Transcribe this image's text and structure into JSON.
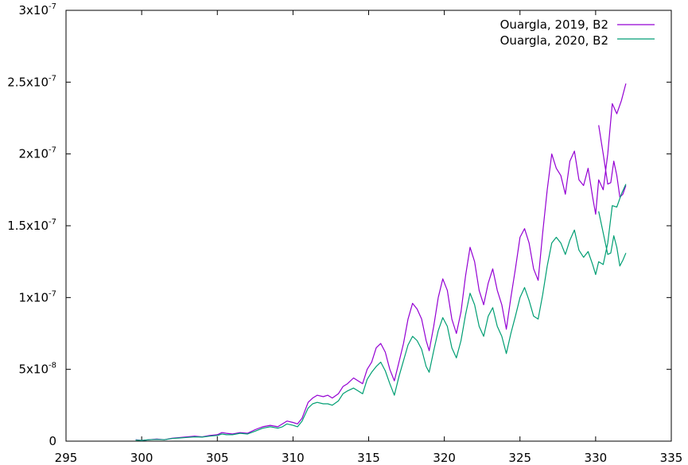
{
  "chart_data": {
    "type": "line",
    "title": "",
    "xlabel": "",
    "ylabel": "",
    "xlim": [
      295,
      335
    ],
    "ylim": [
      0,
      3e-07
    ],
    "x_ticks": [
      295,
      300,
      305,
      310,
      315,
      320,
      325,
      330,
      335
    ],
    "y_ticks": [
      {
        "value": 0,
        "mant": "0",
        "exp": ""
      },
      {
        "value": 5e-08,
        "mant": "5x10",
        "exp": "-8"
      },
      {
        "value": 1e-07,
        "mant": "1x10",
        "exp": "-7"
      },
      {
        "value": 1.5e-07,
        "mant": "1.5x10",
        "exp": "-7"
      },
      {
        "value": 2e-07,
        "mant": "2x10",
        "exp": "-7"
      },
      {
        "value": 2.5e-07,
        "mant": "2.5x10",
        "exp": "-7"
      },
      {
        "value": 3e-07,
        "mant": "3x10",
        "exp": "-7"
      }
    ],
    "grid": false,
    "legend_position": "top-right",
    "series": [
      {
        "name": "Ouargla, 2019, B2",
        "color": "#9400d3",
        "x": [
          299.6,
          300.0,
          300.5,
          301.0,
          301.5,
          302.0,
          302.5,
          303.0,
          303.5,
          304.0,
          304.5,
          305.0,
          305.3,
          305.6,
          306.0,
          306.5,
          307.0,
          307.5,
          308.0,
          308.5,
          309.0,
          309.3,
          309.6,
          310.0,
          310.3,
          310.6,
          311.0,
          311.3,
          311.6,
          312.0,
          312.3,
          312.6,
          313.0,
          313.3,
          313.6,
          314.0,
          314.3,
          314.6,
          314.9,
          315.2,
          315.5,
          315.8,
          316.1,
          316.4,
          316.7,
          317.0,
          317.3,
          317.6,
          317.9,
          318.2,
          318.5,
          318.8,
          319.0,
          319.3,
          319.6,
          319.9,
          320.2,
          320.5,
          320.8,
          321.1,
          321.4,
          321.7,
          322.0,
          322.3,
          322.6,
          322.9,
          323.2,
          323.5,
          323.8,
          324.1,
          324.4,
          324.7,
          325.0,
          325.3,
          325.6,
          325.9,
          326.2,
          326.5,
          326.8,
          327.1,
          327.4,
          327.7,
          328.0,
          328.3,
          328.6,
          328.9,
          329.2,
          329.5,
          329.8,
          330.0,
          330.2,
          330.5,
          330.8,
          331.1,
          331.4,
          331.7,
          332.0
        ],
        "y": [
          1e-09,
          5e-10,
          1e-09,
          1.5e-09,
          1e-09,
          2e-09,
          2.5e-09,
          3e-09,
          3.5e-09,
          3e-09,
          4e-09,
          4.5e-09,
          6e-09,
          5.5e-09,
          5e-09,
          6e-09,
          5.5e-09,
          8e-09,
          1e-08,
          1.1e-08,
          1e-08,
          1.2e-08,
          1.4e-08,
          1.3e-08,
          1.2e-08,
          1.6e-08,
          2.7e-08,
          3e-08,
          3.2e-08,
          3.1e-08,
          3.2e-08,
          3e-08,
          3.3e-08,
          3.8e-08,
          4e-08,
          4.4e-08,
          4.2e-08,
          4e-08,
          5e-08,
          5.5e-08,
          6.5e-08,
          6.8e-08,
          6.2e-08,
          5e-08,
          4.2e-08,
          5.5e-08,
          6.8e-08,
          8.5e-08,
          9.6e-08,
          9.2e-08,
          8.5e-08,
          7e-08,
          6.3e-08,
          8e-08,
          1e-07,
          1.13e-07,
          1.05e-07,
          8.5e-08,
          7.5e-08,
          9e-08,
          1.15e-07,
          1.35e-07,
          1.25e-07,
          1.05e-07,
          9.5e-08,
          1.1e-07,
          1.2e-07,
          1.05e-07,
          9.5e-08,
          7.8e-08,
          1e-07,
          1.2e-07,
          1.42e-07,
          1.48e-07,
          1.38e-07,
          1.2e-07,
          1.12e-07,
          1.45e-07,
          1.75e-07,
          2e-07,
          1.9e-07,
          1.85e-07,
          1.72e-07,
          1.95e-07,
          2.02e-07,
          1.82e-07,
          1.78e-07,
          1.9e-07,
          1.7e-07,
          1.58e-07,
          1.82e-07,
          1.75e-07,
          2e-07,
          2.35e-07,
          2.28e-07,
          2.37e-07,
          2.49e-07
        ],
        "x2": [
          330.2,
          330.5,
          330.8,
          331.0,
          331.2,
          331.4,
          331.6,
          331.8,
          332.0
        ],
        "y2": [
          2.2e-07,
          2e-07,
          1.79e-07,
          1.8e-07,
          1.95e-07,
          1.85e-07,
          1.7e-07,
          1.72e-07,
          1.78e-07
        ]
      },
      {
        "name": "Ouargla, 2020, B2",
        "color": "#009e73",
        "x": [
          299.6,
          300.0,
          300.5,
          301.0,
          301.5,
          302.0,
          302.5,
          303.0,
          303.5,
          304.0,
          304.5,
          305.0,
          305.3,
          305.6,
          306.0,
          306.5,
          307.0,
          307.5,
          308.0,
          308.5,
          309.0,
          309.3,
          309.6,
          310.0,
          310.3,
          310.6,
          311.0,
          311.3,
          311.6,
          312.0,
          312.3,
          312.6,
          313.0,
          313.3,
          313.6,
          314.0,
          314.3,
          314.6,
          314.9,
          315.2,
          315.5,
          315.8,
          316.1,
          316.4,
          316.7,
          317.0,
          317.3,
          317.6,
          317.9,
          318.2,
          318.5,
          318.8,
          319.0,
          319.3,
          319.6,
          319.9,
          320.2,
          320.5,
          320.8,
          321.1,
          321.4,
          321.7,
          322.0,
          322.3,
          322.6,
          322.9,
          323.2,
          323.5,
          323.8,
          324.1,
          324.4,
          324.7,
          325.0,
          325.3,
          325.6,
          325.9,
          326.2,
          326.5,
          326.8,
          327.1,
          327.4,
          327.7,
          328.0,
          328.3,
          328.6,
          328.9,
          329.2,
          329.5,
          329.8,
          330.0,
          330.2,
          330.5,
          330.8,
          331.1,
          331.4,
          331.7,
          332.0
        ],
        "y": [
          8e-10,
          5e-10,
          1e-09,
          1.2e-09,
          1e-09,
          1.8e-09,
          2.2e-09,
          2.6e-09,
          3e-09,
          2.8e-09,
          3.5e-09,
          4e-09,
          5e-09,
          4.5e-09,
          4.5e-09,
          5.5e-09,
          5e-09,
          7e-09,
          9e-09,
          1e-08,
          9e-09,
          1e-08,
          1.2e-08,
          1.1e-08,
          1e-08,
          1.4e-08,
          2.3e-08,
          2.6e-08,
          2.7e-08,
          2.6e-08,
          2.6e-08,
          2.5e-08,
          2.8e-08,
          3.3e-08,
          3.5e-08,
          3.7e-08,
          3.5e-08,
          3.3e-08,
          4.3e-08,
          4.8e-08,
          5.2e-08,
          5.5e-08,
          4.9e-08,
          4e-08,
          3.2e-08,
          4.5e-08,
          5.6e-08,
          6.7e-08,
          7.3e-08,
          7e-08,
          6.4e-08,
          5.2e-08,
          4.8e-08,
          6.3e-08,
          7.7e-08,
          8.6e-08,
          8e-08,
          6.5e-08,
          5.8e-08,
          7e-08,
          8.8e-08,
          1.03e-07,
          9.5e-08,
          8e-08,
          7.3e-08,
          8.7e-08,
          9.3e-08,
          8e-08,
          7.3e-08,
          6.1e-08,
          7.5e-08,
          8.7e-08,
          1e-07,
          1.07e-07,
          9.8e-08,
          8.7e-08,
          8.5e-08,
          1.02e-07,
          1.22e-07,
          1.38e-07,
          1.42e-07,
          1.38e-07,
          1.3e-07,
          1.4e-07,
          1.47e-07,
          1.33e-07,
          1.28e-07,
          1.32e-07,
          1.23e-07,
          1.16e-07,
          1.25e-07,
          1.23e-07,
          1.38e-07,
          1.64e-07,
          1.63e-07,
          1.72e-07,
          1.79e-07
        ],
        "x2": [
          330.2,
          330.5,
          330.8,
          331.0,
          331.2,
          331.4,
          331.6,
          331.8,
          332.0
        ],
        "y2": [
          1.6e-07,
          1.45e-07,
          1.3e-07,
          1.31e-07,
          1.43e-07,
          1.35e-07,
          1.22e-07,
          1.26e-07,
          1.31e-07
        ]
      }
    ]
  }
}
